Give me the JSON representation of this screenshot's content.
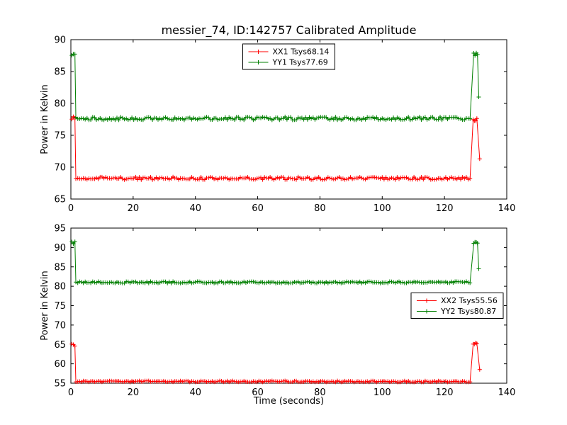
{
  "figure": {
    "title": "messier_74, ID:142757 Calibrated Amplitude",
    "xlabel": "Time (seconds)",
    "background": "#ffffff"
  },
  "chart_data": [
    {
      "type": "line",
      "title": "messier_74, ID:142757 Calibrated Amplitude",
      "ylabel": "Power in Kelvin",
      "xlim": [
        0,
        140
      ],
      "ylim": [
        65,
        90
      ],
      "xticks": [
        0,
        20,
        40,
        60,
        80,
        100,
        120,
        140
      ],
      "yticks": [
        65,
        70,
        75,
        80,
        85,
        90
      ],
      "grid": false,
      "legend_position": "upper center",
      "series": [
        {
          "name": "XX1 Tsys68.14",
          "color": "#ff0000",
          "marker": "+",
          "profile": {
            "x_start": 0.3,
            "y_start": 77.7,
            "start_noise": 0.3,
            "x_base_start": 1.6,
            "x_base_end": 128.4,
            "y_base": 68.25,
            "noise": 0.22,
            "x_end": 129.2,
            "y_end": 77.5,
            "end_noise": 0.55,
            "x_last": 131.3,
            "y_last": 71.3
          }
        },
        {
          "name": "YY1 Tsys77.69",
          "color": "#007f00",
          "marker": "+",
          "profile": {
            "x_start": 0.3,
            "y_start": 87.8,
            "start_noise": 0.4,
            "x_base_start": 1.6,
            "x_base_end": 128.6,
            "y_base": 77.65,
            "noise": 0.25,
            "x_end": 129.4,
            "y_end": 87.7,
            "end_noise": 0.5,
            "x_last": 131.0,
            "y_last": 81.0
          }
        }
      ]
    },
    {
      "type": "line",
      "title": "",
      "ylabel": "Power in Kelvin",
      "xlabel": "Time (seconds)",
      "xlim": [
        0,
        140
      ],
      "ylim": [
        55,
        95
      ],
      "xticks": [
        0,
        20,
        40,
        60,
        80,
        100,
        120,
        140
      ],
      "yticks": [
        55,
        60,
        65,
        70,
        75,
        80,
        85,
        90,
        95
      ],
      "grid": false,
      "legend_position": "center right",
      "series": [
        {
          "name": "XX2 Tsys55.56",
          "color": "#ff0000",
          "marker": "+",
          "profile": {
            "x_start": 0.3,
            "y_start": 64.8,
            "start_noise": 0.3,
            "x_base_start": 1.6,
            "x_base_end": 128.4,
            "y_base": 55.45,
            "noise": 0.18,
            "x_end": 129.2,
            "y_end": 65.0,
            "end_noise": 0.5,
            "x_last": 131.3,
            "y_last": 58.5
          }
        },
        {
          "name": "YY2 Tsys80.87",
          "color": "#007f00",
          "marker": "+",
          "profile": {
            "x_start": 0.3,
            "y_start": 91.2,
            "start_noise": 0.4,
            "x_base_start": 1.6,
            "x_base_end": 128.6,
            "y_base": 81.0,
            "noise": 0.22,
            "x_end": 129.4,
            "y_end": 91.2,
            "end_noise": 0.45,
            "x_last": 131.0,
            "y_last": 84.5
          }
        }
      ]
    }
  ]
}
